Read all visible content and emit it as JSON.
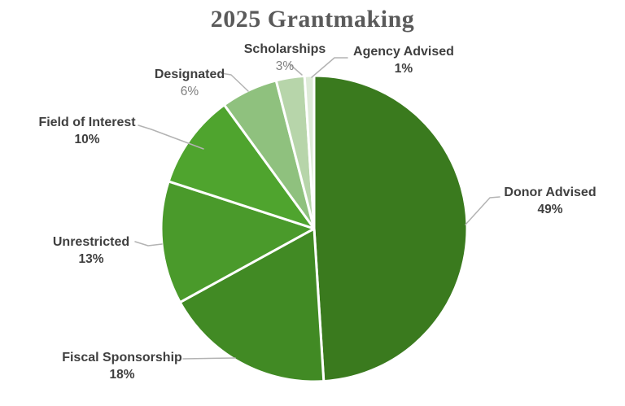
{
  "page": {
    "title": "2025 Grantmaking"
  },
  "chart_data": {
    "type": "pie",
    "title": "2025 Grantmaking",
    "unit": "percent",
    "start_angle_deg": 0,
    "direction": "clockwise",
    "labels": "outside-with-leader-lines",
    "legend_position": "none",
    "slices": [
      {
        "id": "donor-advised",
        "label": "Donor Advised",
        "value": 49,
        "value_label": "49%",
        "color": "#3A7A1E"
      },
      {
        "id": "fiscal-sponsorship",
        "label": "Fiscal Sponsorship",
        "value": 18,
        "value_label": "18%",
        "color": "#418A24"
      },
      {
        "id": "unrestricted",
        "label": "Unrestricted",
        "value": 13,
        "value_label": "13%",
        "color": "#4A9A2B"
      },
      {
        "id": "field-of-interest",
        "label": "Field of Interest",
        "value": 10,
        "value_label": "10%",
        "color": "#4FA42E"
      },
      {
        "id": "designated",
        "label": "Designated",
        "value": 6,
        "value_label": "6%",
        "color": "#8FC17E"
      },
      {
        "id": "scholarships",
        "label": "Scholarships",
        "value": 3,
        "value_label": "3%",
        "color": "#B7D5AA"
      },
      {
        "id": "agency-advised",
        "label": "Agency Advised",
        "value": 1,
        "value_label": "1%",
        "color": "#DEEBD8"
      }
    ],
    "styles": {
      "separator_color": "#ffffff",
      "leader_line_color": "#b3b3b3",
      "title_color": "#5a5a5a",
      "label_color": "#3f3f3f",
      "muted_value_color": "#7f7f7f",
      "background_color": "#ffffff"
    }
  }
}
